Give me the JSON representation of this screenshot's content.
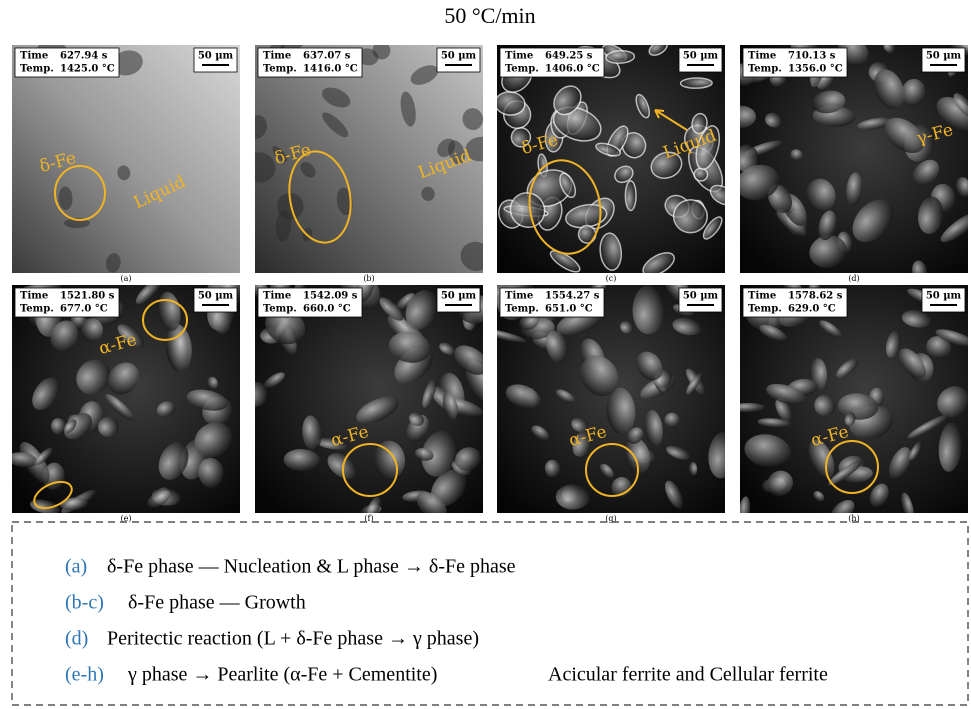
{
  "title": "50 °C/min",
  "panels": [
    {
      "label": "(a)",
      "time_label": "Time",
      "time": "627.94 s",
      "temp_label": "Temp.",
      "temp": "1425.0 °C",
      "scale": "50 µm",
      "annotations": [
        "δ-Fe",
        "Liquid"
      ]
    },
    {
      "label": "(b)",
      "time_label": "Time",
      "time": "637.07 s",
      "temp_label": "Temp.",
      "temp": "1416.0 °C",
      "scale": "50 µm",
      "annotations": [
        "δ-Fe",
        "Liquid"
      ]
    },
    {
      "label": "(c)",
      "time_label": "Time",
      "time": "649.25 s",
      "temp_label": "Temp.",
      "temp": "1406.0 °C",
      "scale": "50 µm",
      "annotations": [
        "δ-Fe",
        "Liquid"
      ]
    },
    {
      "label": "(d)",
      "time_label": "Time",
      "time": "710.13 s",
      "temp_label": "Temp.",
      "temp": "1356.0 °C",
      "scale": "50 µm",
      "annotations": [
        "γ-Fe"
      ]
    },
    {
      "label": "(e)",
      "time_label": "Time",
      "time": "1521.80 s",
      "temp_label": "Temp.",
      "temp": "677.0 °C",
      "scale": "50 µm",
      "annotations": [
        "α-Fe"
      ]
    },
    {
      "label": "(f)",
      "time_label": "Time",
      "time": "1542.09 s",
      "temp_label": "Temp.",
      "temp": "660.0 °C",
      "scale": "50 µm",
      "annotations": [
        "α-Fe"
      ]
    },
    {
      "label": "(g)",
      "time_label": "Time",
      "time": "1554.27 s",
      "temp_label": "Temp.",
      "temp": "651.0 °C",
      "scale": "50 µm",
      "annotations": [
        "α-Fe"
      ]
    },
    {
      "label": "(h)",
      "time_label": "Time",
      "time": "1578.62 s",
      "temp_label": "Temp.",
      "temp": "629.0 °C",
      "scale": "50 µm",
      "annotations": [
        "α-Fe"
      ]
    }
  ],
  "legend": [
    {
      "tag": "(a)",
      "text": "δ-Fe phase — Nucleation & L phase → δ-Fe phase"
    },
    {
      "tag": "(b-c)",
      "text": "δ-Fe phase — Growth"
    },
    {
      "tag": "(d)",
      "text": "Peritectic reaction (L + δ-Fe phase → γ phase)"
    },
    {
      "tag": "(e-h)",
      "text": "γ phase → Pearlite  (α-Fe + Cementite)",
      "extra": "Acicular ferrite and Cellular ferrite"
    }
  ]
}
